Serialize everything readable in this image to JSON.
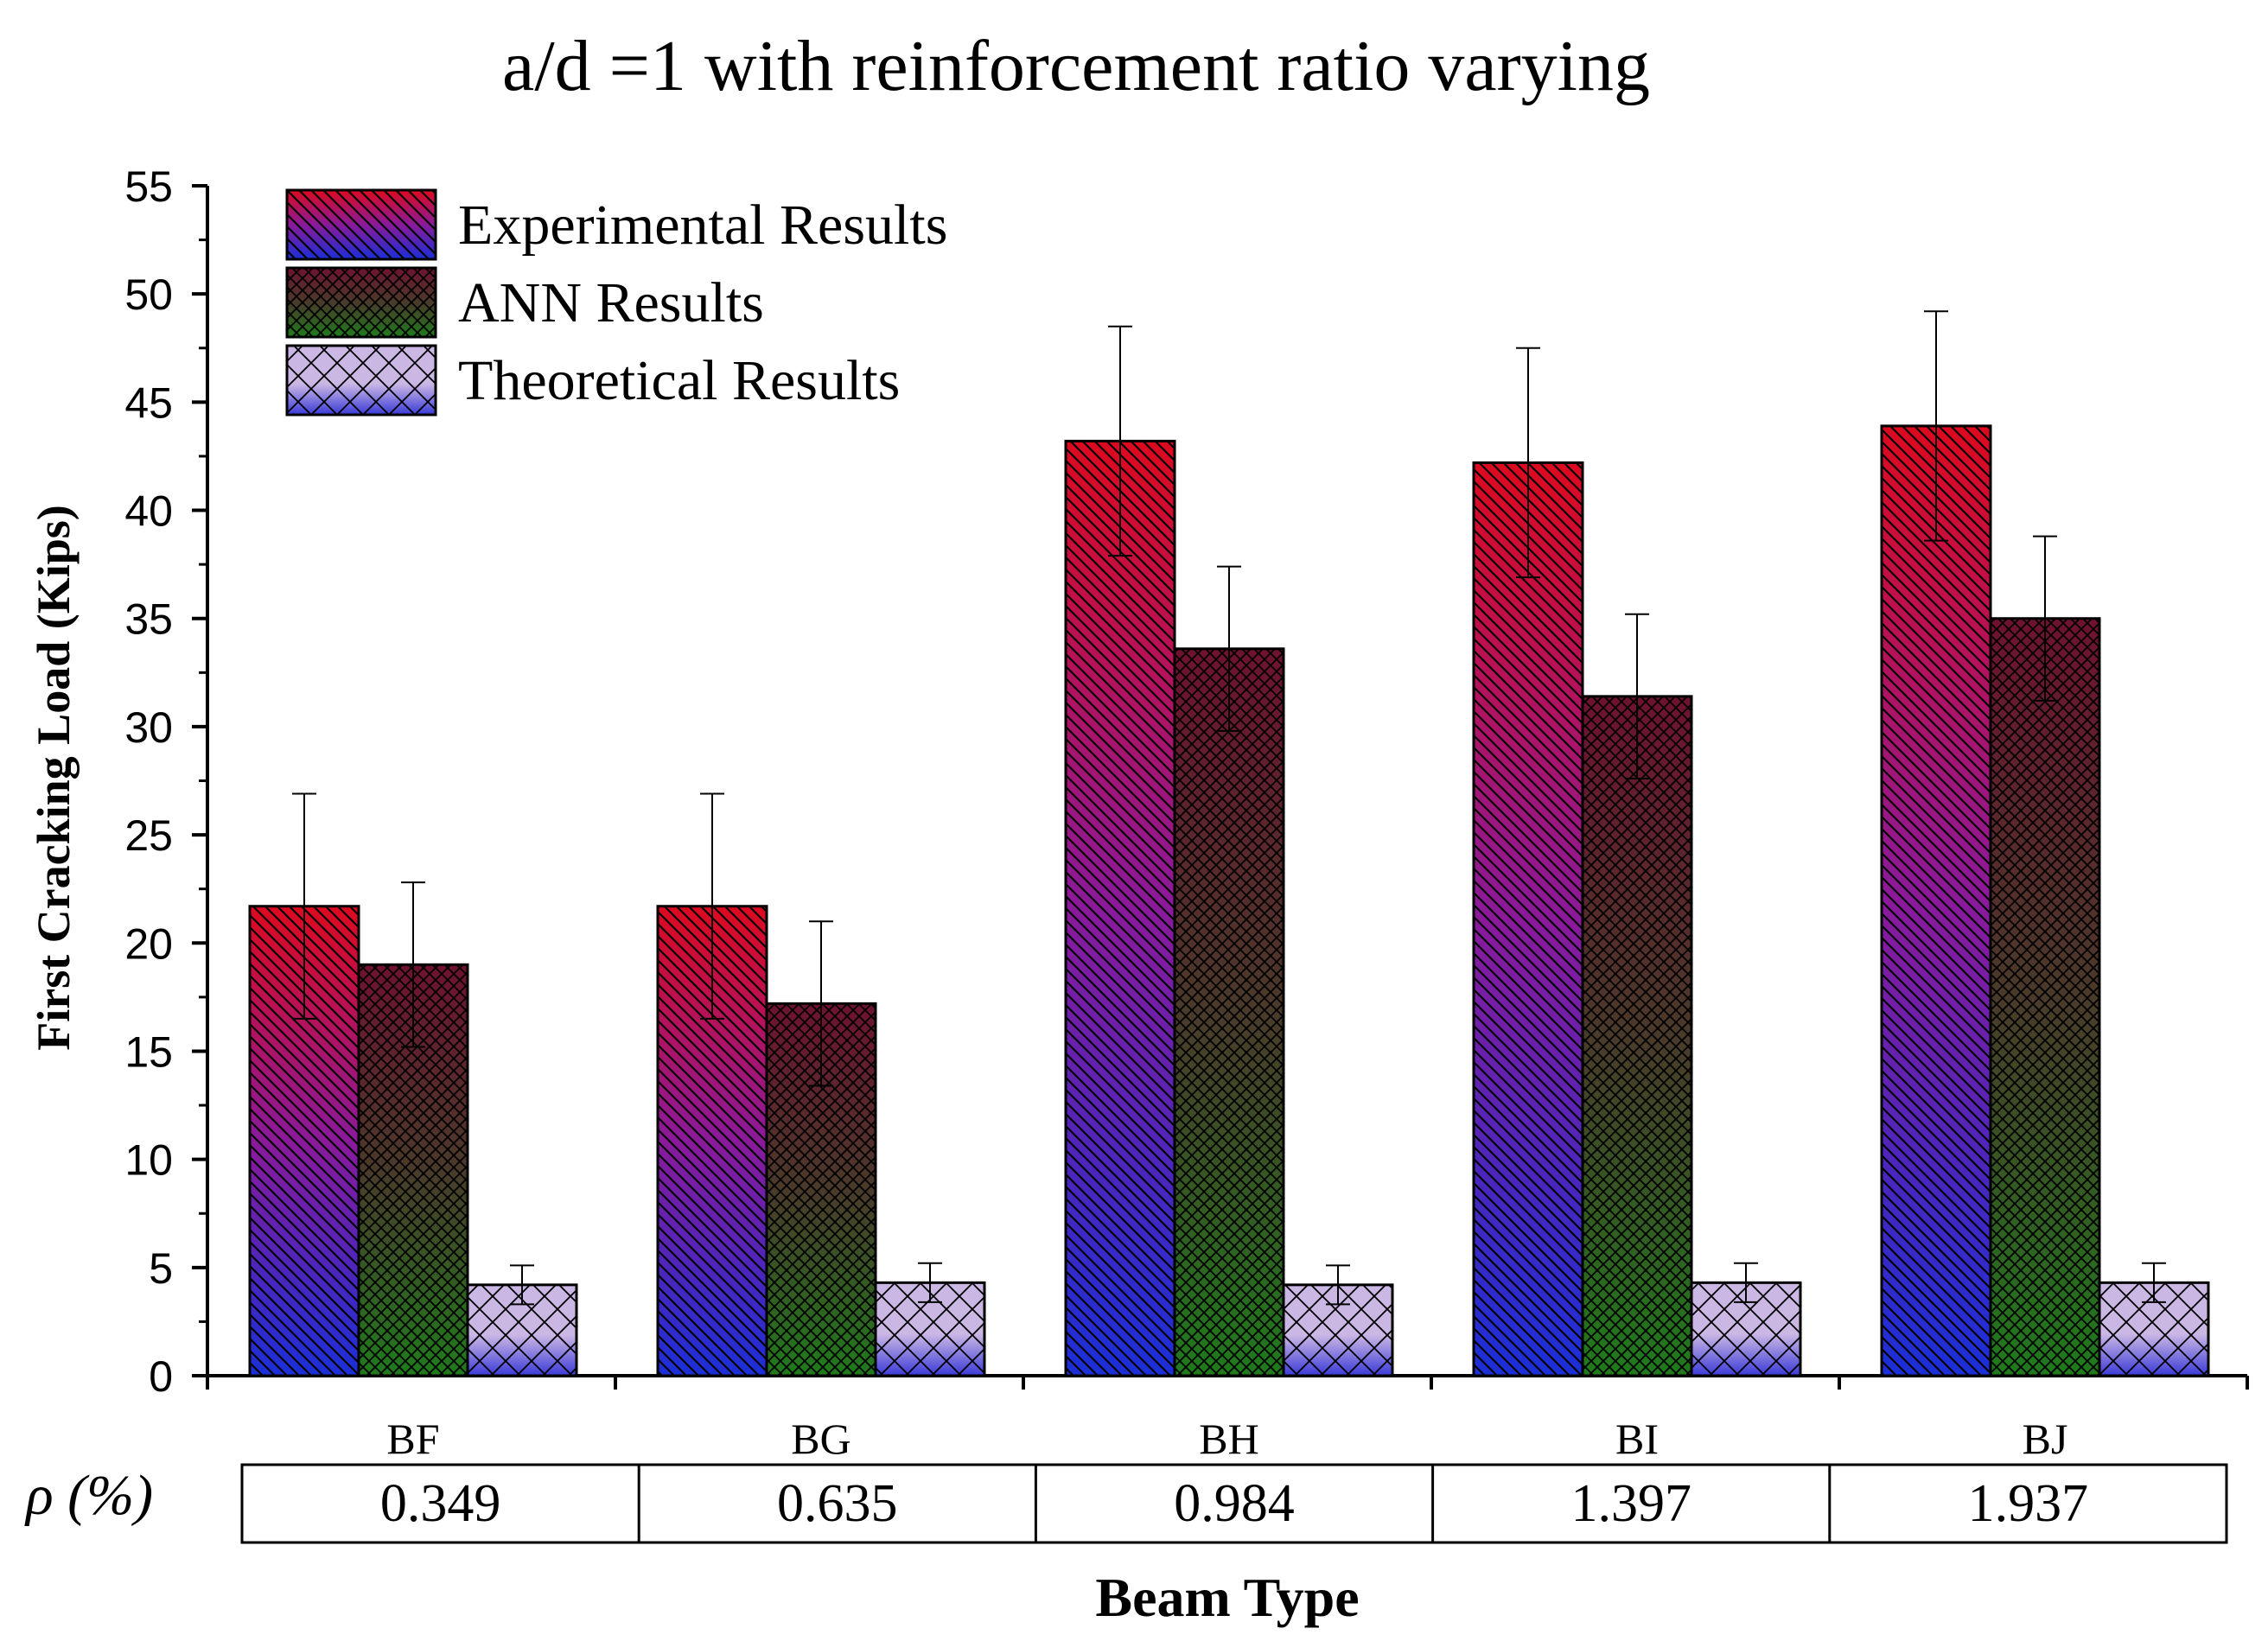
{
  "chart_data": {
    "type": "bar",
    "title": "a/d =1 with reinforcement ratio varying",
    "xlabel": "Beam Type",
    "ylabel": "First Cracking Load (Kips)",
    "ylim": [
      0,
      55
    ],
    "y_ticks": [
      "0",
      "5",
      "10",
      "15",
      "20",
      "25",
      "30",
      "35",
      "40",
      "45",
      "50",
      "55"
    ],
    "categories": [
      "BF",
      "BG",
      "BH",
      "BI",
      "BJ"
    ],
    "series": [
      {
        "name": "Experimental Results",
        "values": [
          21.7,
          21.7,
          43.2,
          42.2,
          43.9
        ],
        "errors": [
          5.2,
          5.2,
          5.3,
          5.3,
          5.3
        ]
      },
      {
        "name": "ANN Results",
        "values": [
          19.0,
          17.2,
          33.6,
          31.4,
          35.0
        ],
        "errors": [
          3.8,
          3.8,
          3.8,
          3.8,
          3.8
        ]
      },
      {
        "name": "Theoretical Results",
        "values": [
          4.2,
          4.3,
          4.2,
          4.3,
          4.3
        ],
        "errors": [
          0.9,
          0.9,
          0.9,
          0.9,
          0.9
        ]
      }
    ],
    "legend_position": "top-left",
    "rho_row": {
      "label": "ρ (%)",
      "values": [
        "0.349",
        "0.635",
        "0.984",
        "1.397",
        "1.937"
      ]
    },
    "grid": false
  },
  "colors": {
    "exp_top": "#dd0a1e",
    "exp_mid": "#8a1a9a",
    "exp_bottom": "#1a2fd8",
    "ann_top": "#6e1230",
    "ann_mid": "#4a3a2a",
    "ann_bottom": "#1f7a1c",
    "theo_top": "#cbb7e4",
    "theo_bottom": "#3a3ad8"
  }
}
